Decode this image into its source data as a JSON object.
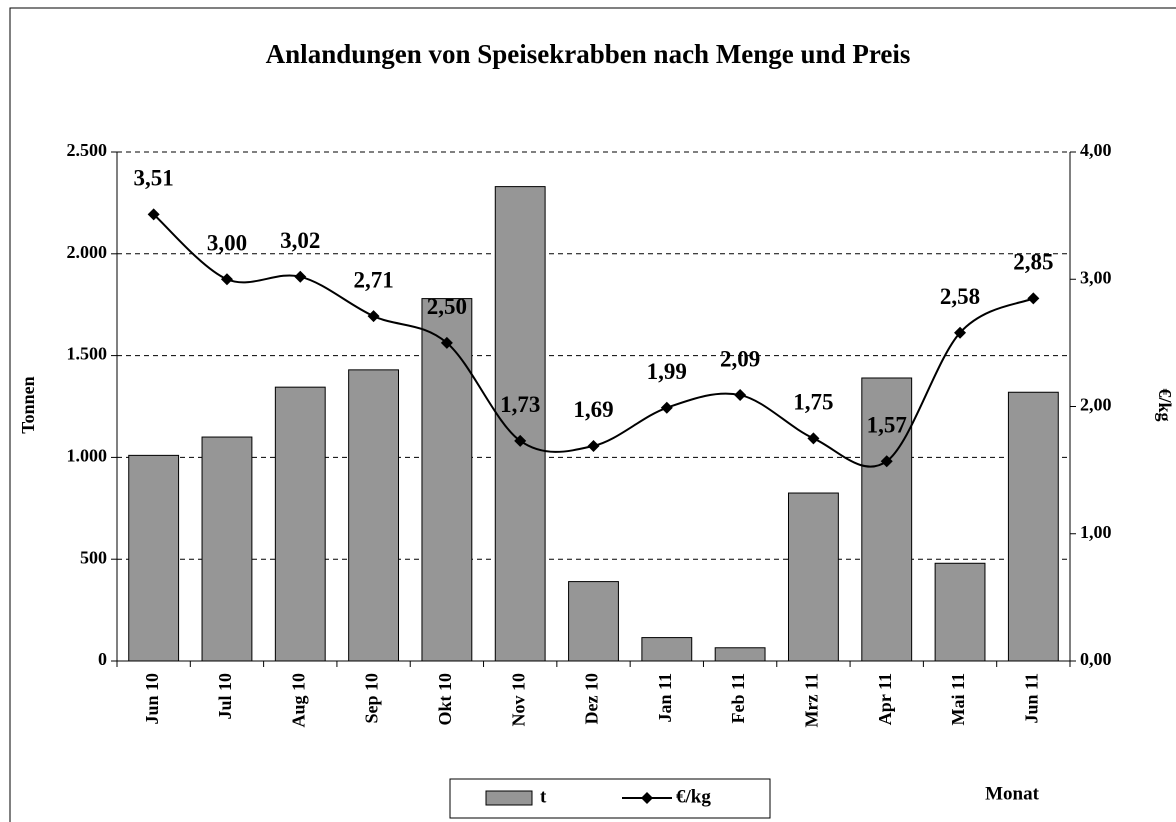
{
  "chart_data": {
    "type": "bar_line",
    "title": "Anlandungen von Speisekrabben nach Menge und Preis",
    "ylabel": "Tonnen",
    "y2label": "€/kg",
    "xlabel": "Monat",
    "categories": [
      "Jun 10",
      "Jul 10",
      "Aug 10",
      "Sep 10",
      "Okt 10",
      "Nov 10",
      "Dez 10",
      "Jan 11",
      "Feb 11",
      "Mrz 11",
      "Apr 11",
      "Mai 11",
      "Jun 11"
    ],
    "series": [
      {
        "name": "t",
        "type": "bar",
        "color": "#969696",
        "values": [
          1010,
          1100,
          1345,
          1430,
          1780,
          2330,
          390,
          115,
          65,
          825,
          1390,
          480,
          1320
        ]
      },
      {
        "name": "€/kg",
        "type": "line",
        "axis": "y2",
        "color": "#000000",
        "values": [
          3.51,
          3.0,
          3.02,
          2.71,
          2.5,
          1.73,
          1.69,
          1.99,
          2.09,
          1.75,
          1.57,
          2.58,
          2.85
        ],
        "value_labels": [
          "3,51",
          "3,00",
          "3,02",
          "2,71",
          "2,50",
          "1,73",
          "1,69",
          "1,99",
          "2,09",
          "1,75",
          "1,57",
          "2,58",
          "2,85"
        ]
      }
    ],
    "ylim": [
      0,
      2500
    ],
    "yticks": [
      0,
      500,
      {
        "value": 1000,
        "label": "1.000"
      },
      {
        "value": 1500,
        "label": "1.500"
      },
      {
        "value": 2000,
        "label": "2.000"
      },
      {
        "value": 2500,
        "label": "2.500"
      }
    ],
    "y2lim": [
      0,
      4
    ],
    "y2ticks": [
      {
        "value": 0,
        "label": "0,00"
      },
      {
        "value": 1,
        "label": "1,00"
      },
      {
        "value": 2,
        "label": "2,00"
      },
      {
        "value": 3,
        "label": "3,00"
      },
      {
        "value": 4,
        "label": "4,00"
      }
    ],
    "grid": true,
    "legend": "bottom"
  }
}
